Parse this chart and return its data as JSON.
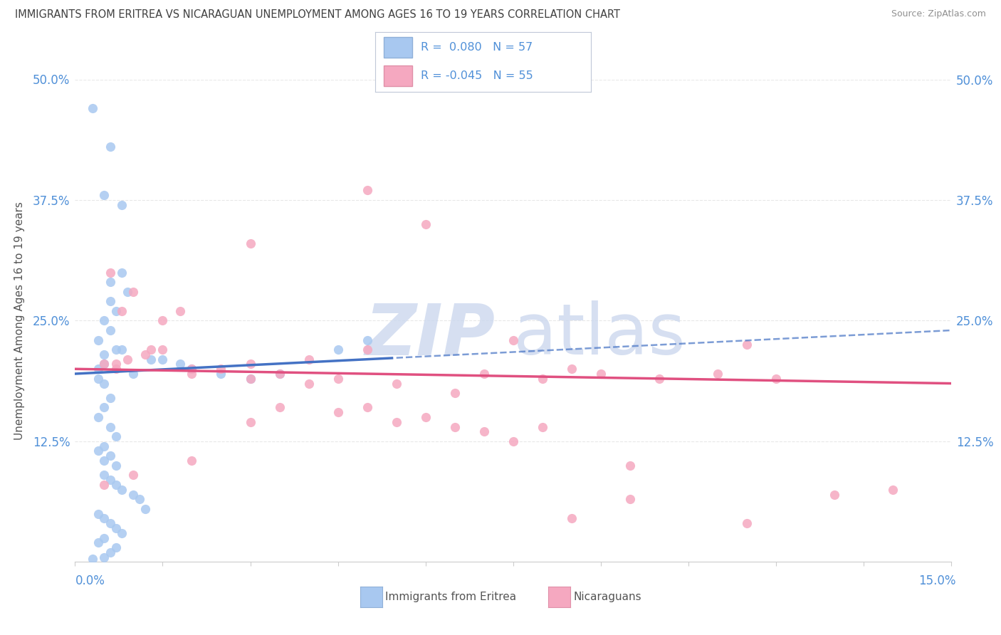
{
  "title": "IMMIGRANTS FROM ERITREA VS NICARAGUAN UNEMPLOYMENT AMONG AGES 16 TO 19 YEARS CORRELATION CHART",
  "source": "Source: ZipAtlas.com",
  "ylabel": "Unemployment Among Ages 16 to 19 years",
  "x_min": 0.0,
  "x_max": 15.0,
  "y_min": 0.0,
  "y_max": 50.0,
  "y_ticks": [
    12.5,
    25.0,
    37.5,
    50.0
  ],
  "R1": 0.08,
  "N1": 57,
  "R2": -0.045,
  "N2": 55,
  "blue_color": "#a8c8f0",
  "blue_line_color": "#4472c4",
  "pink_color": "#f5a8c0",
  "pink_line_color": "#e05080",
  "title_color": "#404040",
  "source_color": "#909090",
  "tick_color": "#5090d8",
  "grid_color": "#e8e8e8",
  "blue_scatter_x": [
    0.4,
    0.5,
    1.0,
    1.3,
    0.3,
    0.6,
    0.4,
    0.5,
    0.7,
    0.6,
    0.5,
    0.4,
    0.6,
    0.7,
    0.5,
    0.4,
    0.6,
    0.5,
    0.7,
    0.8,
    0.5,
    0.6,
    0.4,
    0.5,
    0.7,
    0.6,
    0.8,
    0.9,
    0.5,
    0.6,
    0.7,
    0.8,
    1.0,
    1.1,
    1.2,
    1.5,
    1.8,
    2.0,
    2.5,
    3.0,
    3.5,
    0.4,
    0.5,
    0.6,
    0.7,
    0.8,
    0.5,
    0.4,
    0.6,
    5.0,
    4.5,
    0.7,
    0.6,
    0.5,
    0.8,
    0.5,
    0.3
  ],
  "blue_scatter_y": [
    20.0,
    20.5,
    19.5,
    21.0,
    47.0,
    29.0,
    19.0,
    18.5,
    22.0,
    17.0,
    16.0,
    15.0,
    14.0,
    13.0,
    12.0,
    11.5,
    11.0,
    10.5,
    10.0,
    22.0,
    21.5,
    24.0,
    23.0,
    25.0,
    26.0,
    27.0,
    30.0,
    28.0,
    9.0,
    8.5,
    8.0,
    7.5,
    7.0,
    6.5,
    5.5,
    21.0,
    20.5,
    20.0,
    19.5,
    19.0,
    19.5,
    5.0,
    4.5,
    4.0,
    3.5,
    3.0,
    2.5,
    2.0,
    43.0,
    23.0,
    22.0,
    1.5,
    1.0,
    38.0,
    37.0,
    0.5,
    0.3
  ],
  "pink_scatter_x": [
    0.5,
    0.7,
    0.9,
    1.2,
    1.5,
    2.0,
    3.0,
    4.0,
    5.0,
    6.0,
    7.0,
    8.0,
    9.0,
    10.0,
    11.0,
    12.0,
    13.0,
    14.0,
    1.8,
    2.5,
    3.5,
    4.5,
    5.5,
    6.5,
    7.5,
    8.5,
    0.6,
    0.8,
    1.0,
    1.3,
    2.0,
    3.0,
    4.0,
    5.0,
    6.0,
    3.0,
    4.5,
    6.5,
    7.0,
    8.0,
    9.5,
    0.5,
    1.0,
    2.0,
    3.5,
    5.5,
    7.5,
    9.5,
    11.5,
    0.7,
    1.5,
    3.0,
    5.0,
    8.5,
    11.5
  ],
  "pink_scatter_y": [
    20.5,
    20.0,
    21.0,
    21.5,
    22.0,
    20.0,
    20.5,
    21.0,
    22.0,
    35.0,
    19.5,
    19.0,
    19.5,
    19.0,
    19.5,
    19.0,
    7.0,
    7.5,
    26.0,
    20.0,
    19.5,
    19.0,
    18.5,
    17.5,
    23.0,
    20.0,
    30.0,
    26.0,
    28.0,
    22.0,
    19.5,
    19.0,
    18.5,
    16.0,
    15.0,
    14.5,
    15.5,
    14.0,
    13.5,
    14.0,
    10.0,
    8.0,
    9.0,
    10.5,
    16.0,
    14.5,
    12.5,
    6.5,
    22.5,
    20.5,
    25.0,
    33.0,
    38.5,
    4.5,
    4.0
  ]
}
